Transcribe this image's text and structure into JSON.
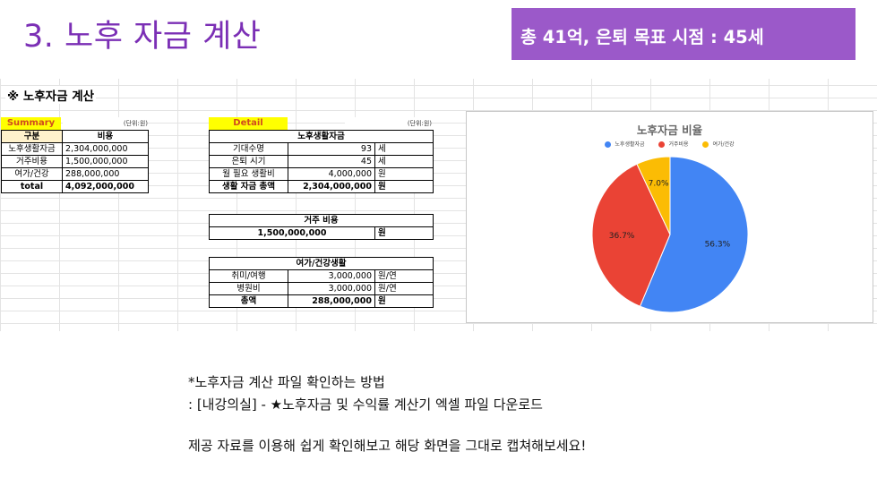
{
  "slide": {
    "title": "3. 노후 자금 계산",
    "badge": "총 41억, 은퇴 목표 시점  : 45세"
  },
  "sheet": {
    "title": "※ 노후자금 계산",
    "summary": {
      "label": "Summary",
      "unit": "(단위:원)",
      "headers": [
        "구분",
        "비용"
      ],
      "rows": [
        [
          "노후생활자금",
          "2,304,000,000"
        ],
        [
          "거주비용",
          "1,500,000,000"
        ],
        [
          "여가/건강",
          "288,000,000"
        ],
        [
          "total",
          "4,092,000,000"
        ]
      ]
    },
    "detail": {
      "label": "Detail",
      "unit": "(단위:원)",
      "living": {
        "header": "노후생활자금",
        "rows": [
          [
            "기대수명",
            "93",
            "세"
          ],
          [
            "은퇴 시기",
            "45",
            "세"
          ],
          [
            "월 필요 생활비",
            "4,000,000",
            "원"
          ],
          [
            "생활 자금 총액",
            "2,304,000,000",
            "원"
          ]
        ]
      },
      "housing": {
        "header": "거주 비용",
        "value": "1,500,000,000",
        "unit": "원"
      },
      "leisure": {
        "header": "여가/건강생활",
        "rows": [
          [
            "취미/여행",
            "3,000,000",
            "원/연"
          ],
          [
            "병원비",
            "3,000,000",
            "원/연"
          ],
          [
            "총액",
            "288,000,000",
            "원"
          ]
        ]
      }
    }
  },
  "chart_data": {
    "type": "pie",
    "title": "노후자금 비율",
    "legend_position": "top",
    "categories": [
      "노후생활자금",
      "거주비용",
      "여가/건강"
    ],
    "values": [
      56.3,
      36.7,
      7.0
    ],
    "labels": [
      "56.3%",
      "36.7%",
      "7.0%"
    ],
    "colors": [
      "#4285f4",
      "#ea4335",
      "#fbbc04"
    ]
  },
  "notes": {
    "line1": "*노후자금 계산 파일 확인하는 방법",
    "line2": ": [내강의실] - ★노후자금 및 수익률 계산기 엑셀 파일 다운로드",
    "line3": "제공 자료를 이용해 쉽게 확인해보고 해당 화면을 그대로 캡쳐해보세요!"
  }
}
